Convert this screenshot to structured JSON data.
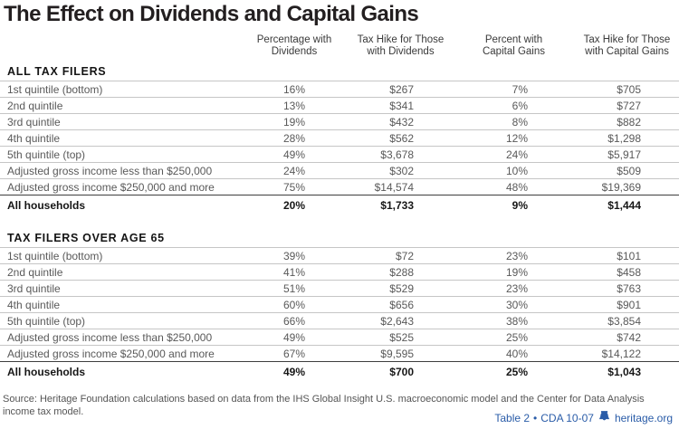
{
  "page": {
    "title": "The Effect on Dividends and Capital Gains"
  },
  "chart_data": {
    "type": "table",
    "title": "The Effect on Dividends and Capital Gains",
    "column_headers": [
      [
        "Percentage with",
        "Dividends"
      ],
      [
        "Tax Hike for Those",
        "with Dividends"
      ],
      [
        "Percent with",
        "Capital Gains"
      ],
      [
        "Tax Hike for Those",
        "with Capital Gains"
      ]
    ],
    "sections": [
      {
        "header": "ALL TAX FILERS",
        "rows": [
          {
            "label": "1st quintile (bottom)",
            "values": [
              "16%",
              "$267",
              "7%",
              "$705"
            ],
            "emphasis": false
          },
          {
            "label": "2nd quintile",
            "values": [
              "13%",
              "$341",
              "6%",
              "$727"
            ],
            "emphasis": false
          },
          {
            "label": "3rd quintile",
            "values": [
              "19%",
              "$432",
              "8%",
              "$882"
            ],
            "emphasis": false
          },
          {
            "label": "4th quintile",
            "values": [
              "28%",
              "$562",
              "12%",
              "$1,298"
            ],
            "emphasis": false
          },
          {
            "label": "5th quintile (top)",
            "values": [
              "49%",
              "$3,678",
              "24%",
              "$5,917"
            ],
            "emphasis": false
          },
          {
            "label": "Adjusted gross income less than $250,000",
            "values": [
              "24%",
              "$302",
              "10%",
              "$509"
            ],
            "emphasis": false
          },
          {
            "label": "Adjusted gross income $250,000 and more",
            "values": [
              "75%",
              "$14,574",
              "48%",
              "$19,369"
            ],
            "emphasis": false
          },
          {
            "label": "All households",
            "values": [
              "20%",
              "$1,733",
              "9%",
              "$1,444"
            ],
            "emphasis": true
          }
        ]
      },
      {
        "header": "TAX FILERS OVER AGE 65",
        "rows": [
          {
            "label": "1st quintile (bottom)",
            "values": [
              "39%",
              "$72",
              "23%",
              "$101"
            ],
            "emphasis": false
          },
          {
            "label": "2nd quintile",
            "values": [
              "41%",
              "$288",
              "19%",
              "$458"
            ],
            "emphasis": false
          },
          {
            "label": "3rd quintile",
            "values": [
              "51%",
              "$529",
              "23%",
              "$763"
            ],
            "emphasis": false
          },
          {
            "label": "4th quintile",
            "values": [
              "60%",
              "$656",
              "30%",
              "$901"
            ],
            "emphasis": false
          },
          {
            "label": "5th quintile (top)",
            "values": [
              "66%",
              "$2,643",
              "38%",
              "$3,854"
            ],
            "emphasis": false
          },
          {
            "label": "Adjusted gross income less than $250,000",
            "values": [
              "49%",
              "$525",
              "25%",
              "$742"
            ],
            "emphasis": false
          },
          {
            "label": "Adjusted gross income $250,000 and more",
            "values": [
              "67%",
              "$9,595",
              "40%",
              "$14,122"
            ],
            "emphasis": false
          },
          {
            "label": "All households",
            "values": [
              "49%",
              "$700",
              "25%",
              "$1,043"
            ],
            "emphasis": true
          }
        ]
      }
    ]
  },
  "footer": {
    "source_line1": "Source: Heritage Foundation calculations based on data from the IHS Global Insight U.S. macroeconomic model and the Center for Data Analysis",
    "source_line2": "income tax model.",
    "table_label": "Table 2",
    "separator": "•",
    "doc_code": "CDA 10-07",
    "website": "heritage.org"
  },
  "colors": {
    "accent_blue": "#2a5ca8",
    "title_text": "#231f20",
    "body_text": "#595959",
    "divider_light": "#c6c6c6",
    "divider_dark": "#3e3e3e"
  }
}
